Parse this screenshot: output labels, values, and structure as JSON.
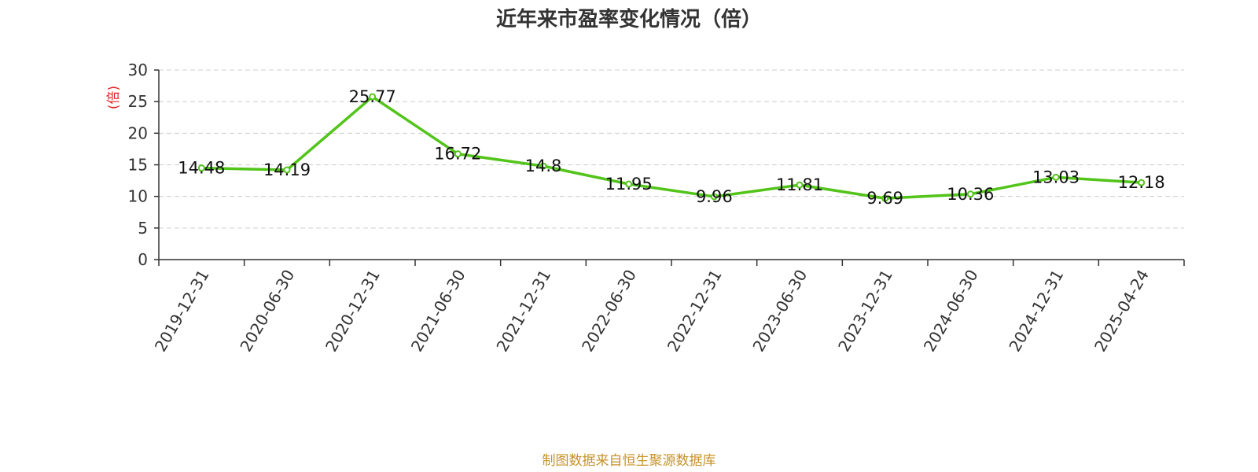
{
  "chart_data": {
    "type": "line",
    "title": "近年来市盈率变化情况（倍）",
    "ylabel": "(倍)",
    "xlabel": "",
    "categories": [
      "2019-12-31",
      "2020-06-30",
      "2020-12-31",
      "2021-06-30",
      "2021-12-31",
      "2022-06-30",
      "2022-12-31",
      "2023-06-30",
      "2023-12-31",
      "2024-06-30",
      "2024-12-31",
      "2025-04-24"
    ],
    "values": [
      14.48,
      14.19,
      25.77,
      16.72,
      14.8,
      11.95,
      9.96,
      11.81,
      9.69,
      10.36,
      13.03,
      12.18
    ],
    "value_labels": [
      "14.48",
      "14.19",
      "25.77",
      "16.72",
      "14.8",
      "11.95",
      "9.96",
      "11.81",
      "9.69",
      "10.36",
      "13.03",
      "12.18"
    ],
    "ylim": [
      0,
      30
    ],
    "yticks": [
      0,
      5,
      10,
      15,
      20,
      25,
      30
    ],
    "grid": true,
    "colors": {
      "line": "#52c41a",
      "ylabel": "#e02020",
      "source": "#c8922a"
    }
  },
  "footer": {
    "source": "制图数据来自恒生聚源数据库"
  }
}
